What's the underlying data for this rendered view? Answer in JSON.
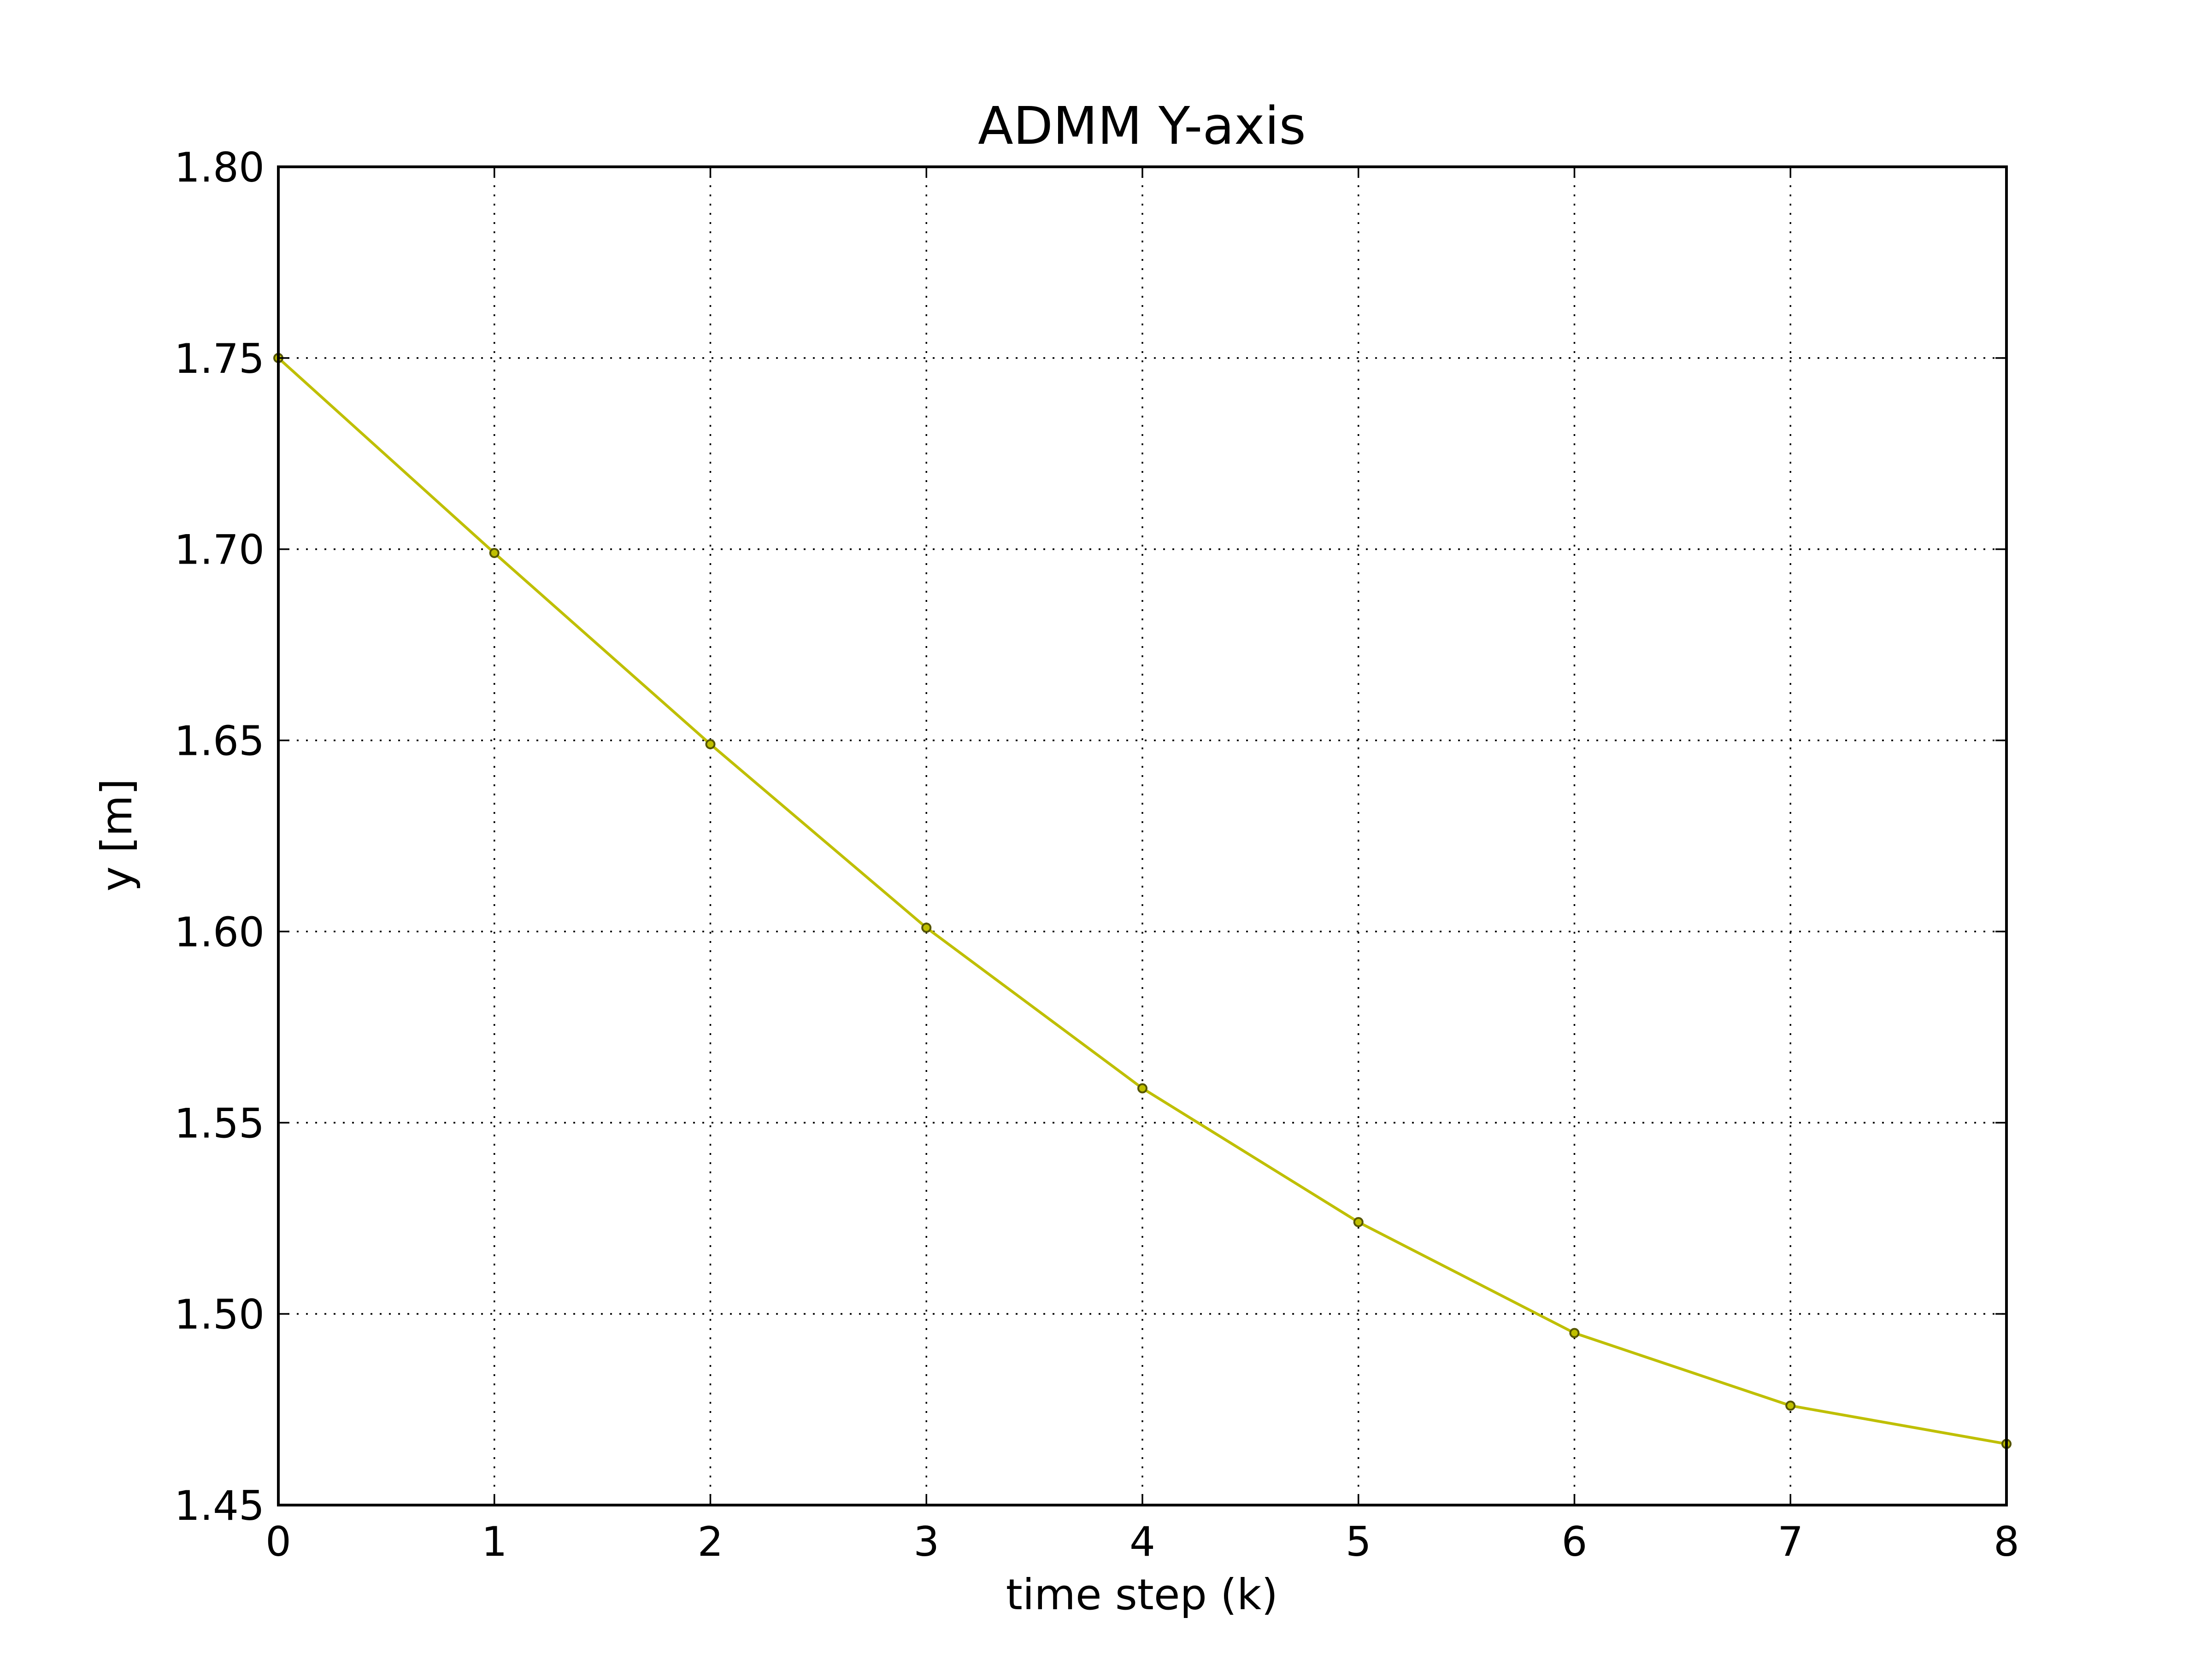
{
  "chart_data": {
    "type": "line",
    "title": "ADMM Y-axis",
    "xlabel": "time step (k)",
    "ylabel": "y [m]",
    "xlim": [
      0,
      8
    ],
    "ylim": [
      1.45,
      1.8
    ],
    "xticks": [
      0,
      1,
      2,
      3,
      4,
      5,
      6,
      7,
      8
    ],
    "yticks": [
      1.45,
      1.5,
      1.55,
      1.6,
      1.65,
      1.7,
      1.75,
      1.8
    ],
    "ytick_labels": [
      "1.45",
      "1.50",
      "1.55",
      "1.60",
      "1.65",
      "1.70",
      "1.75",
      "1.80"
    ],
    "grid": true,
    "legend": "none",
    "series": [
      {
        "color": "#bfbf00",
        "marker": "circle",
        "x": [
          0,
          1,
          2,
          3,
          4,
          5,
          6,
          7,
          8
        ],
        "y": [
          1.75,
          1.699,
          1.649,
          1.601,
          1.559,
          1.524,
          1.495,
          1.476,
          1.466
        ]
      }
    ]
  }
}
